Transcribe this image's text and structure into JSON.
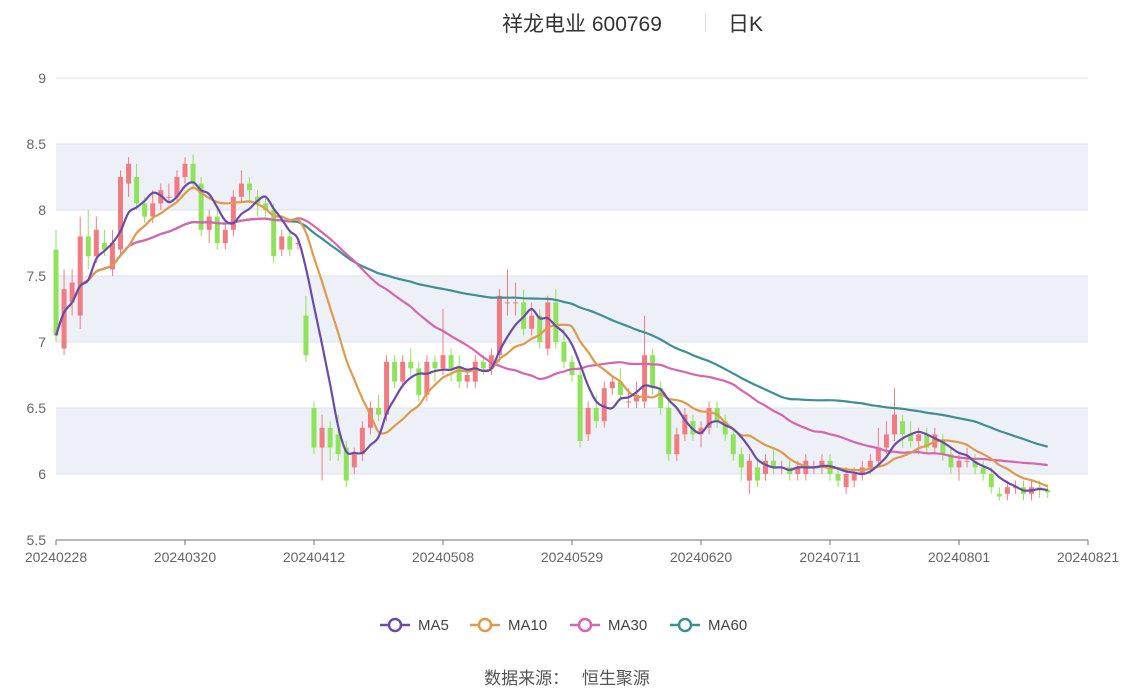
{
  "title": {
    "stock": "祥龙电业 600769",
    "period": "日K"
  },
  "footer": {
    "label": "数据来源：",
    "source": "恒生聚源"
  },
  "colors": {
    "up": "#f07c82",
    "down": "#8fe35a",
    "MA5": "#6a4ca8",
    "MA10": "#de9a4e",
    "MA30": "#d565ad",
    "MA60": "#3e8f93",
    "band": "#eef0f8",
    "grid": "#dde2ee"
  },
  "chart_data": {
    "type": "candlestick",
    "ylim": [
      5.5,
      9
    ],
    "yticks": [
      "5.5",
      "6",
      "6.5",
      "7",
      "7.5",
      "8",
      "8.5",
      "9"
    ],
    "xticks": [
      "20240228",
      "20240320",
      "20240412",
      "20240508",
      "20240529",
      "20240620",
      "20240711",
      "20240801",
      "20240821"
    ],
    "xtick_index": [
      0,
      16,
      32,
      48,
      64,
      80,
      96,
      112,
      128
    ],
    "n": 129,
    "legend": [
      "MA5",
      "MA10",
      "MA30",
      "MA60"
    ],
    "legend_position": "bottom",
    "candles": [
      [
        7.7,
        7.05,
        7.85,
        7.0
      ],
      [
        6.95,
        7.4,
        7.55,
        6.9
      ],
      [
        7.3,
        7.45,
        7.55,
        7.2
      ],
      [
        7.2,
        7.8,
        7.95,
        7.1
      ],
      [
        7.8,
        7.65,
        8.0,
        7.55
      ],
      [
        7.65,
        7.85,
        7.95,
        7.6
      ],
      [
        7.75,
        7.7,
        7.85,
        7.65
      ],
      [
        7.55,
        7.75,
        7.85,
        7.5
      ],
      [
        7.7,
        8.25,
        8.3,
        7.65
      ],
      [
        8.2,
        8.35,
        8.4,
        8.1
      ],
      [
        8.25,
        8.05,
        8.35,
        8.0
      ],
      [
        8.05,
        7.95,
        8.1,
        7.9
      ],
      [
        7.95,
        8.05,
        8.15,
        7.9
      ],
      [
        8.05,
        8.15,
        8.2,
        8.0
      ],
      [
        8.1,
        8.1,
        8.2,
        8.05
      ],
      [
        8.1,
        8.25,
        8.3,
        8.05
      ],
      [
        8.25,
        8.35,
        8.4,
        8.2
      ],
      [
        8.35,
        8.2,
        8.42,
        8.15
      ],
      [
        8.2,
        7.85,
        8.25,
        7.8
      ],
      [
        7.85,
        7.95,
        8.0,
        7.75
      ],
      [
        7.95,
        7.75,
        8.0,
        7.7
      ],
      [
        7.75,
        7.85,
        7.9,
        7.7
      ],
      [
        7.85,
        8.1,
        8.15,
        7.8
      ],
      [
        8.1,
        8.2,
        8.3,
        8.05
      ],
      [
        8.2,
        8.15,
        8.25,
        8.05
      ],
      [
        8.1,
        8.05,
        8.15,
        7.95
      ],
      [
        8.05,
        8.0,
        8.1,
        7.95
      ],
      [
        8.0,
        7.65,
        8.05,
        7.6
      ],
      [
        7.7,
        7.8,
        7.85,
        7.65
      ],
      [
        7.8,
        7.7,
        7.85,
        7.65
      ],
      [
        7.75,
        7.75,
        7.8,
        7.7
      ],
      [
        7.2,
        6.9,
        7.35,
        6.85
      ],
      [
        6.5,
        6.2,
        6.55,
        6.15
      ],
      [
        6.2,
        6.35,
        6.45,
        5.95
      ],
      [
        6.35,
        6.2,
        6.4,
        6.1
      ],
      [
        6.3,
        6.15,
        6.45,
        6.1
      ],
      [
        6.2,
        5.95,
        6.25,
        5.9
      ],
      [
        6.05,
        6.15,
        6.2,
        6.0
      ],
      [
        6.15,
        6.35,
        6.4,
        6.1
      ],
      [
        6.35,
        6.5,
        6.55,
        6.3
      ],
      [
        6.5,
        6.45,
        6.6,
        6.4
      ],
      [
        6.45,
        6.85,
        6.9,
        6.4
      ],
      [
        6.85,
        6.7,
        6.9,
        6.65
      ],
      [
        6.7,
        6.85,
        6.9,
        6.65
      ],
      [
        6.85,
        6.8,
        6.95,
        6.75
      ],
      [
        6.8,
        6.6,
        6.85,
        6.55
      ],
      [
        6.6,
        6.85,
        6.9,
        6.55
      ],
      [
        6.85,
        6.8,
        6.9,
        6.7
      ],
      [
        6.8,
        6.9,
        7.25,
        6.75
      ],
      [
        6.9,
        6.8,
        6.95,
        6.7
      ],
      [
        6.8,
        6.7,
        6.9,
        6.65
      ],
      [
        6.7,
        6.75,
        6.8,
        6.65
      ],
      [
        6.7,
        6.85,
        6.9,
        6.65
      ],
      [
        6.85,
        6.8,
        6.9,
        6.75
      ],
      [
        6.8,
        6.9,
        6.95,
        6.75
      ],
      [
        6.9,
        7.35,
        7.4,
        6.85
      ],
      [
        7.3,
        7.3,
        7.55,
        7.2
      ],
      [
        7.3,
        7.3,
        7.45,
        7.2
      ],
      [
        7.3,
        7.1,
        7.4,
        7.05
      ],
      [
        7.1,
        7.2,
        7.3,
        7.05
      ],
      [
        7.2,
        7.0,
        7.25,
        6.95
      ],
      [
        6.95,
        7.3,
        7.35,
        6.9
      ],
      [
        7.3,
        7.0,
        7.4,
        6.95
      ],
      [
        7.0,
        6.85,
        7.1,
        6.8
      ],
      [
        6.85,
        6.75,
        6.9,
        6.7
      ],
      [
        6.75,
        6.25,
        6.8,
        6.2
      ],
      [
        6.3,
        6.5,
        6.55,
        6.25
      ],
      [
        6.5,
        6.4,
        6.6,
        6.35
      ],
      [
        6.4,
        6.65,
        6.7,
        6.35
      ],
      [
        6.65,
        6.7,
        6.75,
        6.6
      ],
      [
        6.7,
        6.6,
        6.8,
        6.55
      ],
      [
        6.55,
        6.55,
        6.65,
        6.5
      ],
      [
        6.55,
        6.6,
        6.7,
        6.5
      ],
      [
        6.55,
        6.9,
        7.2,
        6.5
      ],
      [
        6.9,
        6.65,
        6.95,
        6.6
      ],
      [
        6.65,
        6.5,
        6.7,
        6.45
      ],
      [
        6.5,
        6.15,
        6.55,
        6.1
      ],
      [
        6.15,
        6.3,
        6.35,
        6.1
      ],
      [
        6.3,
        6.45,
        6.5,
        6.25
      ],
      [
        6.4,
        6.3,
        6.45,
        6.25
      ],
      [
        6.3,
        6.35,
        6.4,
        6.2
      ],
      [
        6.35,
        6.5,
        6.55,
        6.3
      ],
      [
        6.5,
        6.4,
        6.55,
        6.35
      ],
      [
        6.4,
        6.3,
        6.45,
        6.25
      ],
      [
        6.3,
        6.15,
        6.35,
        6.1
      ],
      [
        6.15,
        6.05,
        6.2,
        5.95
      ],
      [
        5.95,
        6.1,
        6.15,
        5.85
      ],
      [
        6.05,
        5.95,
        6.1,
        5.9
      ],
      [
        6.0,
        6.1,
        6.15,
        5.95
      ],
      [
        6.1,
        6.05,
        6.2,
        6.0
      ],
      [
        6.05,
        6.05,
        6.1,
        6.0
      ],
      [
        6.05,
        6.0,
        6.1,
        5.95
      ],
      [
        6.0,
        6.05,
        6.1,
        5.95
      ],
      [
        6.0,
        6.1,
        6.15,
        5.95
      ],
      [
        6.05,
        6.05,
        6.1,
        6.0
      ],
      [
        6.05,
        6.1,
        6.15,
        6.0
      ],
      [
        6.1,
        6.0,
        6.15,
        5.95
      ],
      [
        6.0,
        5.95,
        6.05,
        5.9
      ],
      [
        5.9,
        6.0,
        6.05,
        5.85
      ],
      [
        5.95,
        6.0,
        6.05,
        5.9
      ],
      [
        6.0,
        6.05,
        6.1,
        5.95
      ],
      [
        6.05,
        6.1,
        6.15,
        6.0
      ],
      [
        6.1,
        6.2,
        6.35,
        6.05
      ],
      [
        6.2,
        6.3,
        6.4,
        6.15
      ],
      [
        6.3,
        6.45,
        6.65,
        6.25
      ],
      [
        6.4,
        6.3,
        6.45,
        6.2
      ],
      [
        6.3,
        6.25,
        6.4,
        6.2
      ],
      [
        6.25,
        6.3,
        6.35,
        6.15
      ],
      [
        6.3,
        6.2,
        6.35,
        6.15
      ],
      [
        6.2,
        6.3,
        6.35,
        6.15
      ],
      [
        6.25,
        6.15,
        6.3,
        6.1
      ],
      [
        6.15,
        6.05,
        6.2,
        6.0
      ],
      [
        6.05,
        6.1,
        6.15,
        5.95
      ],
      [
        6.1,
        6.1,
        6.2,
        6.05
      ],
      [
        6.1,
        6.05,
        6.15,
        6.0
      ],
      [
        6.05,
        6.0,
        6.1,
        5.95
      ],
      [
        6.0,
        5.9,
        6.05,
        5.85
      ],
      [
        5.85,
        5.83,
        5.9,
        5.8
      ],
      [
        5.85,
        5.9,
        5.95,
        5.8
      ],
      [
        5.9,
        5.9,
        5.95,
        5.85
      ],
      [
        5.9,
        5.85,
        5.95,
        5.8
      ],
      [
        5.85,
        5.9,
        5.95,
        5.8
      ],
      [
        5.9,
        5.88,
        5.95,
        5.82
      ],
      [
        5.88,
        5.86,
        5.92,
        5.82
      ]
    ]
  }
}
